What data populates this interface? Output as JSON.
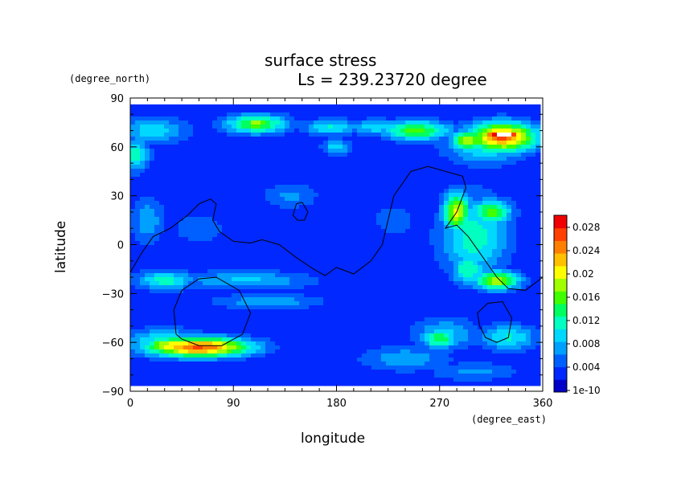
{
  "chart_data": {
    "type": "heatmap",
    "title": "surface stress",
    "subtitle": "Ls = 239.23720 degree",
    "xlabel": "longitude",
    "ylabel": "latitude",
    "xunit": "(degree_east)",
    "yunit": "(degree_north)",
    "xlim": [
      0,
      360
    ],
    "ylim": [
      -90,
      90
    ],
    "xticks": [
      0,
      90,
      180,
      270,
      360
    ],
    "yticks": [
      90,
      60,
      30,
      0,
      -30,
      -60,
      -90
    ],
    "colorbar": {
      "ticks": [
        "0.028",
        "0.024",
        "0.02",
        "0.016",
        "0.012",
        "0.008",
        "0.004",
        "1e-10"
      ],
      "range": [
        0,
        0.03
      ],
      "colors": [
        "#0000c8",
        "#0028ff",
        "#0060ff",
        "#00a0ff",
        "#00d8ff",
        "#00ffc0",
        "#00ff60",
        "#40ff00",
        "#a0ff00",
        "#ffff00",
        "#ffc000",
        "#ff8000",
        "#ff4000",
        "#f00000"
      ]
    },
    "grid": false,
    "field_blobs": [
      {
        "lon": 60,
        "lat": -63,
        "rlon": 45,
        "rlat": 6,
        "value": 0.026
      },
      {
        "lon": 40,
        "lat": -62,
        "rlon": 28,
        "rlat": 5,
        "value": 0.022
      },
      {
        "lon": 55,
        "lat": -64,
        "rlon": 7,
        "rlat": 1.5,
        "value": 0.034
      },
      {
        "lon": 30,
        "lat": -60,
        "rlon": 35,
        "rlat": 8,
        "value": 0.012
      },
      {
        "lon": 325,
        "lat": 66,
        "rlon": 30,
        "rlat": 9,
        "value": 0.025
      },
      {
        "lon": 325,
        "lat": 67,
        "rlon": 20,
        "rlat": 4,
        "value": 0.034
      },
      {
        "lon": 295,
        "lat": 64,
        "rlon": 15,
        "rlat": 6,
        "value": 0.02
      },
      {
        "lon": 310,
        "lat": 62,
        "rlon": 35,
        "rlat": 12,
        "value": 0.012
      },
      {
        "lon": 110,
        "lat": 74,
        "rlon": 28,
        "rlat": 6,
        "value": 0.016
      },
      {
        "lon": 110,
        "lat": 74,
        "rlon": 12,
        "rlat": 3,
        "value": 0.02
      },
      {
        "lon": 175,
        "lat": 72,
        "rlon": 25,
        "rlat": 5,
        "value": 0.011
      },
      {
        "lon": 250,
        "lat": 70,
        "rlon": 30,
        "rlat": 6,
        "value": 0.016
      },
      {
        "lon": 215,
        "lat": 72,
        "rlon": 25,
        "rlat": 5,
        "value": 0.01
      },
      {
        "lon": 180,
        "lat": 60,
        "rlon": 12,
        "rlat": 5,
        "value": 0.01
      },
      {
        "lon": 20,
        "lat": 70,
        "rlon": 30,
        "rlat": 8,
        "value": 0.01
      },
      {
        "lon": 5,
        "lat": 55,
        "rlon": 12,
        "rlat": 10,
        "value": 0.012
      },
      {
        "lon": 285,
        "lat": 20,
        "rlon": 12,
        "rlat": 12,
        "value": 0.02
      },
      {
        "lon": 315,
        "lat": 20,
        "rlon": 18,
        "rlat": 8,
        "value": 0.016
      },
      {
        "lon": 300,
        "lat": 5,
        "rlon": 30,
        "rlat": 25,
        "value": 0.012
      },
      {
        "lon": 320,
        "lat": -22,
        "rlon": 20,
        "rlat": 6,
        "value": 0.019
      },
      {
        "lon": 295,
        "lat": -15,
        "rlon": 15,
        "rlat": 10,
        "value": 0.013
      },
      {
        "lon": 270,
        "lat": -58,
        "rlon": 15,
        "rlat": 6,
        "value": 0.015
      },
      {
        "lon": 275,
        "lat": -55,
        "rlon": 30,
        "rlat": 10,
        "value": 0.009
      },
      {
        "lon": 330,
        "lat": -57,
        "rlon": 25,
        "rlat": 8,
        "value": 0.011
      },
      {
        "lon": 100,
        "lat": -22,
        "rlon": 60,
        "rlat": 6,
        "value": 0.009
      },
      {
        "lon": 30,
        "lat": -22,
        "rlon": 25,
        "rlat": 6,
        "value": 0.012
      },
      {
        "lon": 120,
        "lat": -35,
        "rlon": 50,
        "rlat": 5,
        "value": 0.008
      },
      {
        "lon": 240,
        "lat": -70,
        "rlon": 40,
        "rlat": 8,
        "value": 0.008
      },
      {
        "lon": 300,
        "lat": -78,
        "rlon": 40,
        "rlat": 6,
        "value": 0.007
      },
      {
        "lon": 140,
        "lat": 30,
        "rlon": 25,
        "rlat": 8,
        "value": 0.007
      },
      {
        "lon": 60,
        "lat": 10,
        "rlon": 25,
        "rlat": 10,
        "value": 0.006
      },
      {
        "lon": 230,
        "lat": 15,
        "rlon": 20,
        "rlat": 10,
        "value": 0.006
      },
      {
        "lon": 15,
        "lat": 15,
        "rlon": 15,
        "rlat": 15,
        "value": 0.008
      }
    ],
    "contours": [
      {
        "name": "continent-outline",
        "points": [
          [
            0,
            -17
          ],
          [
            10,
            -5
          ],
          [
            20,
            5
          ],
          [
            35,
            10
          ],
          [
            50,
            18
          ],
          [
            60,
            25
          ],
          [
            70,
            28
          ],
          [
            75,
            25
          ],
          [
            72,
            15
          ],
          [
            78,
            8
          ],
          [
            90,
            2
          ],
          [
            105,
            1
          ],
          [
            115,
            3
          ],
          [
            130,
            0
          ],
          [
            145,
            -8
          ],
          [
            160,
            -15
          ],
          [
            170,
            -19
          ],
          [
            180,
            -14
          ],
          [
            195,
            -18
          ],
          [
            210,
            -10
          ],
          [
            220,
            0
          ],
          [
            225,
            15
          ],
          [
            230,
            30
          ],
          [
            245,
            45
          ],
          [
            260,
            48
          ],
          [
            275,
            45
          ],
          [
            290,
            42
          ],
          [
            293,
            35
          ],
          [
            285,
            20
          ],
          [
            275,
            10
          ],
          [
            285,
            12
          ],
          [
            295,
            5
          ],
          [
            305,
            -5
          ],
          [
            320,
            -20
          ],
          [
            330,
            -27
          ],
          [
            345,
            -28
          ],
          [
            360,
            -20
          ]
        ]
      },
      {
        "name": "island-outline",
        "points": [
          [
            142,
            18
          ],
          [
            145,
            25
          ],
          [
            150,
            26
          ],
          [
            155,
            20
          ],
          [
            152,
            15
          ],
          [
            146,
            15
          ],
          [
            142,
            18
          ]
        ]
      },
      {
        "name": "crater-outline-left",
        "points": [
          [
            40,
            -55
          ],
          [
            38,
            -40
          ],
          [
            45,
            -28
          ],
          [
            60,
            -21
          ],
          [
            75,
            -20
          ],
          [
            95,
            -28
          ],
          [
            105,
            -42
          ],
          [
            98,
            -55
          ],
          [
            80,
            -62
          ],
          [
            60,
            -62
          ],
          [
            45,
            -58
          ],
          [
            40,
            -55
          ]
        ]
      },
      {
        "name": "crater-outline-right",
        "points": [
          [
            305,
            -50
          ],
          [
            303,
            -42
          ],
          [
            312,
            -36
          ],
          [
            325,
            -35
          ],
          [
            333,
            -45
          ],
          [
            330,
            -57
          ],
          [
            320,
            -60
          ],
          [
            310,
            -57
          ],
          [
            305,
            -50
          ]
        ]
      }
    ]
  }
}
